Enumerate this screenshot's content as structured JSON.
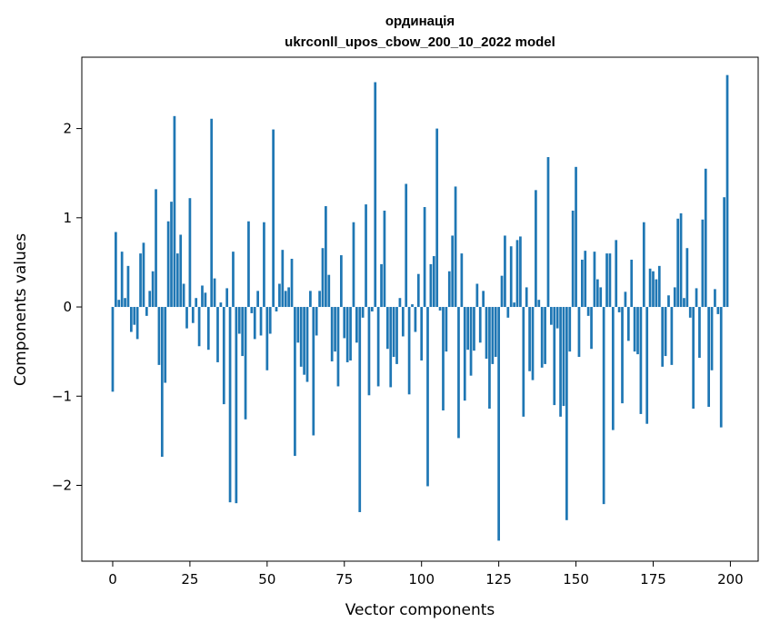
{
  "chart_data": {
    "type": "bar",
    "title_line1": "ординація",
    "title_line2": "ukrconll_upos_cbow_200_10_2022 model",
    "xlabel": "Vector components",
    "ylabel": "Components values",
    "xlim": [
      -10,
      209
    ],
    "ylim": [
      -2.85,
      2.8
    ],
    "xticks": [
      0,
      25,
      50,
      75,
      100,
      125,
      150,
      175,
      200
    ],
    "xtick_labels": [
      "0",
      "25",
      "50",
      "75",
      "100",
      "125",
      "150",
      "175",
      "200"
    ],
    "yticks": [
      -2,
      -1,
      0,
      1,
      2
    ],
    "ytick_labels": [
      "−2",
      "−1",
      "0",
      "1",
      "2"
    ],
    "grid": false,
    "bar_color": "#1f77b4",
    "x": [
      0,
      1,
      2,
      3,
      4,
      5,
      6,
      7,
      8,
      9,
      10,
      11,
      12,
      13,
      14,
      15,
      16,
      17,
      18,
      19,
      20,
      21,
      22,
      23,
      24,
      25,
      26,
      27,
      28,
      29,
      30,
      31,
      32,
      33,
      34,
      35,
      36,
      37,
      38,
      39,
      40,
      41,
      42,
      43,
      44,
      45,
      46,
      47,
      48,
      49,
      50,
      51,
      52,
      53,
      54,
      55,
      56,
      57,
      58,
      59,
      60,
      61,
      62,
      63,
      64,
      65,
      66,
      67,
      68,
      69,
      70,
      71,
      72,
      73,
      74,
      75,
      76,
      77,
      78,
      79,
      80,
      81,
      82,
      83,
      84,
      85,
      86,
      87,
      88,
      89,
      90,
      91,
      92,
      93,
      94,
      95,
      96,
      97,
      98,
      99,
      100,
      101,
      102,
      103,
      104,
      105,
      106,
      107,
      108,
      109,
      110,
      111,
      112,
      113,
      114,
      115,
      116,
      117,
      118,
      119,
      120,
      121,
      122,
      123,
      124,
      125,
      126,
      127,
      128,
      129,
      130,
      131,
      132,
      133,
      134,
      135,
      136,
      137,
      138,
      139,
      140,
      141,
      142,
      143,
      144,
      145,
      146,
      147,
      148,
      149,
      150,
      151,
      152,
      153,
      154,
      155,
      156,
      157,
      158,
      159,
      160,
      161,
      162,
      163,
      164,
      165,
      166,
      167,
      168,
      169,
      170,
      171,
      172,
      173,
      174,
      175,
      176,
      177,
      178,
      179,
      180,
      181,
      182,
      183,
      184,
      185,
      186,
      187,
      188,
      189,
      190,
      191,
      192,
      193,
      194,
      195,
      196,
      197,
      198,
      199
    ],
    "values": [
      -0.95,
      0.84,
      0.08,
      0.62,
      0.1,
      0.46,
      -0.28,
      -0.2,
      -0.36,
      0.6,
      0.72,
      -0.1,
      0.18,
      0.4,
      1.32,
      -0.65,
      -1.68,
      -0.85,
      0.96,
      1.18,
      2.14,
      0.6,
      0.81,
      0.26,
      -0.24,
      1.22,
      -0.18,
      0.1,
      -0.44,
      0.24,
      0.16,
      -0.48,
      2.11,
      0.32,
      -0.62,
      0.05,
      -1.09,
      0.21,
      -2.19,
      0.62,
      -2.2,
      -0.3,
      -0.55,
      -1.26,
      0.96,
      -0.07,
      -0.36,
      0.18,
      -0.32,
      0.95,
      -0.71,
      -0.3,
      1.99,
      -0.05,
      0.26,
      0.64,
      0.18,
      0.22,
      0.54,
      -1.67,
      -0.4,
      -0.67,
      -0.76,
      -0.84,
      0.18,
      -1.44,
      -0.32,
      0.18,
      0.66,
      1.13,
      0.36,
      -0.61,
      -0.5,
      -0.89,
      0.58,
      -0.35,
      -0.62,
      -0.6,
      0.95,
      -0.4,
      -2.3,
      -0.12,
      1.15,
      -0.99,
      -0.05,
      2.52,
      -0.89,
      0.48,
      1.08,
      -0.47,
      -0.9,
      -0.56,
      -0.64,
      0.1,
      -0.33,
      1.38,
      -0.98,
      0.03,
      -0.28,
      0.37,
      -0.6,
      1.12,
      -2.01,
      0.48,
      0.57,
      2.0,
      -0.04,
      -1.16,
      -0.5,
      0.4,
      0.8,
      1.35,
      -1.47,
      0.6,
      -1.05,
      -0.48,
      -0.77,
      -0.49,
      0.26,
      -0.4,
      0.18,
      -0.58,
      -1.14,
      -0.64,
      -0.56,
      -2.62,
      0.35,
      0.8,
      -0.12,
      0.68,
      0.05,
      0.75,
      0.79,
      -1.23,
      0.22,
      -0.72,
      -0.82,
      1.31,
      0.08,
      -0.68,
      -0.64,
      1.68,
      -0.2,
      -1.1,
      -0.24,
      -1.23,
      -1.11,
      -2.39,
      -0.5,
      1.08,
      1.57,
      -0.56,
      0.53,
      0.63,
      -0.1,
      -0.47,
      0.62,
      0.31,
      0.22,
      -2.21,
      0.6,
      0.6,
      -1.38,
      0.75,
      -0.06,
      -1.08,
      0.17,
      -0.38,
      0.53,
      -0.5,
      -0.53,
      -1.2,
      0.95,
      -1.31,
      0.43,
      0.4,
      0.31,
      0.46,
      -0.67,
      -0.55,
      0.13,
      -0.65,
      0.22,
      0.99,
      1.05,
      0.1,
      0.66,
      -0.12,
      -1.14,
      0.21,
      -0.57,
      0.98,
      1.55,
      -1.12,
      -0.71,
      0.2,
      -0.08,
      -1.35,
      1.23,
      2.6
    ]
  }
}
